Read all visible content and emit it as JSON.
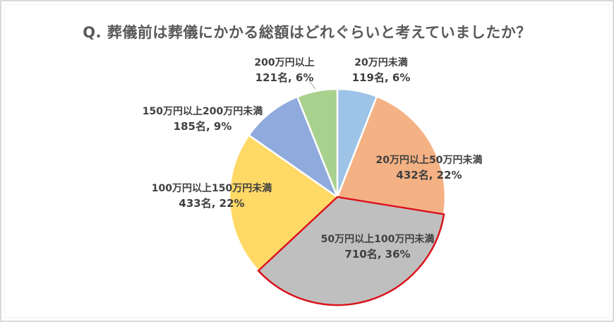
{
  "title": "Q. 葬儀前は葬儀にかかる総額はどれぐらいと考えていましたか？",
  "chart_data": {
    "type": "pie",
    "title": "Q. 葬儀前は葬儀にかかる総額はどれぐらいと考えていましたか？",
    "start_angle": "12 o'clock, clockwise",
    "highlighted_slice": "50万円以上100万円未満",
    "categories": [
      "20万円未満",
      "20万円以上50万円未満",
      "50万円以上100万円未満",
      "100万円以上150万円未満",
      "150万円以上200万円未満",
      "200万円以上"
    ],
    "values": [
      119,
      432,
      710,
      433,
      185,
      121
    ],
    "percentages": [
      6,
      22,
      36,
      22,
      9,
      6
    ],
    "unit": "名",
    "colors": [
      "#9DC3E6",
      "#F4B183",
      "#BFBFBF",
      "#FFD966",
      "#8FAADC",
      "#A9D18E"
    ]
  },
  "labels": [
    {
      "name": "20万円未満",
      "value": "119名, 6%"
    },
    {
      "name": "20万円以上50万円未満",
      "value": "432名, 22%"
    },
    {
      "name": "50万円以上100万円未満",
      "value": "710名, 36%"
    },
    {
      "name": "100万円以上150万円未満",
      "value": "433名, 22%"
    },
    {
      "name": "150万円以上200万円未満",
      "value": "185名, 9%"
    },
    {
      "name": "200万円以上",
      "value": "121名, 6%"
    }
  ],
  "highlight_color": "#D9121B"
}
